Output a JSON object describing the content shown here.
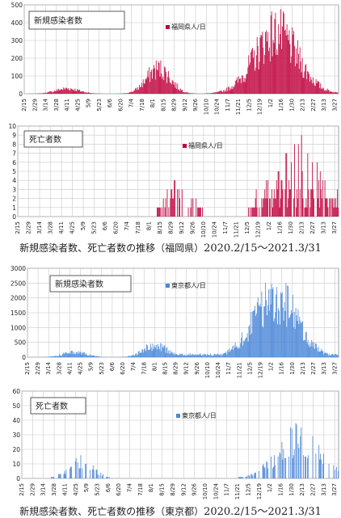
{
  "captions": [
    {
      "text": "新規感染者数、死亡者数の推移（福岡県）",
      "range": "2020.2/15〜2021.3/31"
    },
    {
      "text": "新規感染者数、死亡者数の推移（東京都）",
      "range": "2020.2/15〜2021.3/31"
    }
  ],
  "chart_data": [
    {
      "type": "bar",
      "title": "新規感染者数",
      "legend": "福岡県人/日",
      "legend_position": "top",
      "color": "#c0003c",
      "ylim": [
        0,
        500
      ],
      "yticks": [
        0,
        100,
        200,
        300,
        400,
        500
      ],
      "categories": [
        "2/15",
        "2/29",
        "3/14",
        "3/28",
        "4/11",
        "4/25",
        "5/9",
        "5/23",
        "6/6",
        "6/20",
        "7/4",
        "7/18",
        "8/1",
        "8/15",
        "8/29",
        "9/12",
        "9/26",
        "10/10",
        "10/24",
        "11/7",
        "11/21",
        "12/5",
        "12/19",
        "1/2",
        "1/16",
        "1/30",
        "2/13",
        "2/27",
        "3/13",
        "3/27"
      ],
      "grid": true,
      "peaks": [
        {
          "x": "4/11",
          "value": 35
        },
        {
          "x": "8/8",
          "value": 170
        },
        {
          "x": "1/9",
          "value": 410
        }
      ]
    },
    {
      "type": "bar",
      "title": "死亡者数",
      "legend": "福岡県人/日",
      "legend_position": "top",
      "color": "#c0003c",
      "ylim": [
        0,
        10
      ],
      "yticks": [
        0,
        1,
        2,
        3,
        4,
        5,
        6,
        7,
        8,
        9,
        10
      ],
      "categories": [
        "2/15",
        "2/29",
        "3/14",
        "3/28",
        "4/11",
        "4/25",
        "5/9",
        "5/23",
        "6/6",
        "6/20",
        "7/4",
        "7/18",
        "8/1",
        "8/15",
        "8/29",
        "9/12",
        "9/26",
        "10/10",
        "10/24",
        "11/7",
        "11/21",
        "12/5",
        "12/19",
        "1/2",
        "1/16",
        "1/30",
        "2/13",
        "2/27",
        "3/13",
        "3/27"
      ],
      "grid": true,
      "peaks": [
        {
          "x": "9/8",
          "value": 4
        },
        {
          "x": "2/7",
          "value": 8
        }
      ]
    },
    {
      "type": "bar",
      "title": "新規感染者数",
      "legend": "東京都人/日",
      "legend_position": "top",
      "color": "#4a86d8",
      "ylim": [
        0,
        3000
      ],
      "yticks": [
        0,
        500,
        1000,
        1500,
        2000,
        2500,
        3000
      ],
      "categories": [
        "2/15",
        "2/29",
        "3/14",
        "3/28",
        "4/11",
        "4/25",
        "5/9",
        "5/23",
        "6/6",
        "6/20",
        "7/4",
        "7/18",
        "8/1",
        "8/15",
        "8/29",
        "9/12",
        "9/26",
        "10/10",
        "10/24",
        "11/7",
        "11/21",
        "12/5",
        "12/19",
        "1/2",
        "1/16",
        "1/30",
        "2/13",
        "2/27",
        "3/13",
        "3/27"
      ],
      "grid": true,
      "peaks": [
        {
          "x": "4/17",
          "value": 200
        },
        {
          "x": "8/1",
          "value": 470
        },
        {
          "x": "1/7",
          "value": 2450
        }
      ]
    },
    {
      "type": "bar",
      "title": "死亡者数",
      "legend": "東京都人/日",
      "legend_position": "top",
      "color": "#4a86d8",
      "ylim": [
        0,
        60
      ],
      "yticks": [
        0,
        10,
        20,
        30,
        40,
        50,
        60
      ],
      "categories": [
        "2/15",
        "2/29",
        "3/14",
        "3/28",
        "4/11",
        "4/25",
        "5/9",
        "5/23",
        "6/6",
        "6/20",
        "7/4",
        "7/18",
        "8/1",
        "8/15",
        "8/29",
        "9/12",
        "9/26",
        "10/10",
        "10/24",
        "11/7",
        "11/21",
        "12/5",
        "12/19",
        "1/2",
        "1/16",
        "1/30",
        "2/13",
        "2/27",
        "3/13",
        "3/27"
      ],
      "grid": true,
      "peaks": [
        {
          "x": "4/30",
          "value": 15
        },
        {
          "x": "2/8",
          "value": 32
        }
      ]
    }
  ]
}
